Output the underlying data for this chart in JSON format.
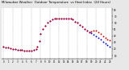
{
  "title": "Milwaukee Weather Outdoor Temperature vs Heat Index (24 Hours)",
  "title_fontsize": 3.0,
  "background_color": "#e8e8e8",
  "plot_bg": "#ffffff",
  "temp_color": "#0000cc",
  "heat_color": "#cc0000",
  "legend_bar_blue": "#0000ff",
  "legend_bar_red": "#ff0000",
  "grid_color": "#aaaaaa",
  "ylabel_right_ticks": [
    10,
    20,
    30,
    40,
    50,
    60,
    70,
    80
  ],
  "temp_x": [
    0,
    0.5,
    1,
    1.5,
    2,
    2.5,
    3,
    3.5,
    4,
    4.5,
    5,
    5.5,
    6,
    6.5,
    7,
    7.3,
    7.7,
    8,
    8.5,
    9,
    9.5,
    10,
    10.5,
    11,
    11.5,
    12,
    12.5,
    13,
    13.5,
    14,
    14.5,
    15,
    15.5,
    16,
    16.5,
    17,
    17.5,
    18,
    18.5,
    19,
    19.5,
    20,
    20.5,
    21,
    21.5,
    22,
    22.5,
    23
  ],
  "temp_y": [
    23,
    22,
    22,
    21,
    20,
    20,
    19,
    19,
    19,
    18,
    18,
    18,
    18,
    19,
    20,
    24,
    32,
    43,
    50,
    55,
    60,
    63,
    65,
    67,
    67,
    67,
    66,
    66,
    66,
    66,
    66,
    65,
    62,
    60,
    57,
    54,
    51,
    48,
    46,
    44,
    42,
    40,
    37,
    34,
    31,
    28,
    26,
    24
  ],
  "heat_x": [
    0,
    0.5,
    1,
    1.5,
    2,
    2.5,
    3,
    3.5,
    4,
    4.5,
    5,
    5.5,
    6,
    6.5,
    7,
    7.3,
    7.7,
    8,
    8.5,
    9,
    9.5,
    10,
    10.5,
    11,
    11.5,
    12,
    12.5,
    13,
    13.5,
    14,
    14.5,
    15,
    15.5,
    16,
    16.5,
    17,
    17.5,
    18,
    18.5,
    19,
    19.5,
    20,
    20.5,
    21,
    21.5,
    22,
    22.5,
    23
  ],
  "heat_y": [
    23,
    22,
    22,
    21,
    20,
    20,
    19,
    19,
    19,
    18,
    18,
    18,
    18,
    19,
    20,
    24,
    32,
    43,
    50,
    55,
    60,
    63,
    65,
    67,
    67,
    67,
    66,
    66,
    66,
    66,
    66,
    65,
    62,
    60,
    57,
    54,
    51,
    48,
    46,
    47,
    48,
    48,
    46,
    43,
    40,
    37,
    35,
    33
  ],
  "ylim": [
    5,
    82
  ],
  "xlim": [
    -0.5,
    23.5
  ],
  "marker_size": 1.8,
  "xtick_positions": [
    0,
    1,
    2,
    3,
    4,
    5,
    6,
    7,
    8,
    9,
    10,
    11,
    12,
    13,
    14,
    15,
    16,
    17,
    18,
    19,
    20,
    21,
    22,
    23
  ],
  "xtick_labels": [
    "0",
    "1",
    "2",
    "3",
    "4",
    "5",
    "6",
    "7",
    "8",
    "9",
    "10",
    "11",
    "12",
    "13",
    "14",
    "15",
    "16",
    "17",
    "18",
    "19",
    "20",
    "21",
    "22",
    "23"
  ],
  "grid_positions": [
    0,
    2,
    4,
    6,
    8,
    10,
    12,
    14,
    16,
    18,
    20,
    22
  ]
}
